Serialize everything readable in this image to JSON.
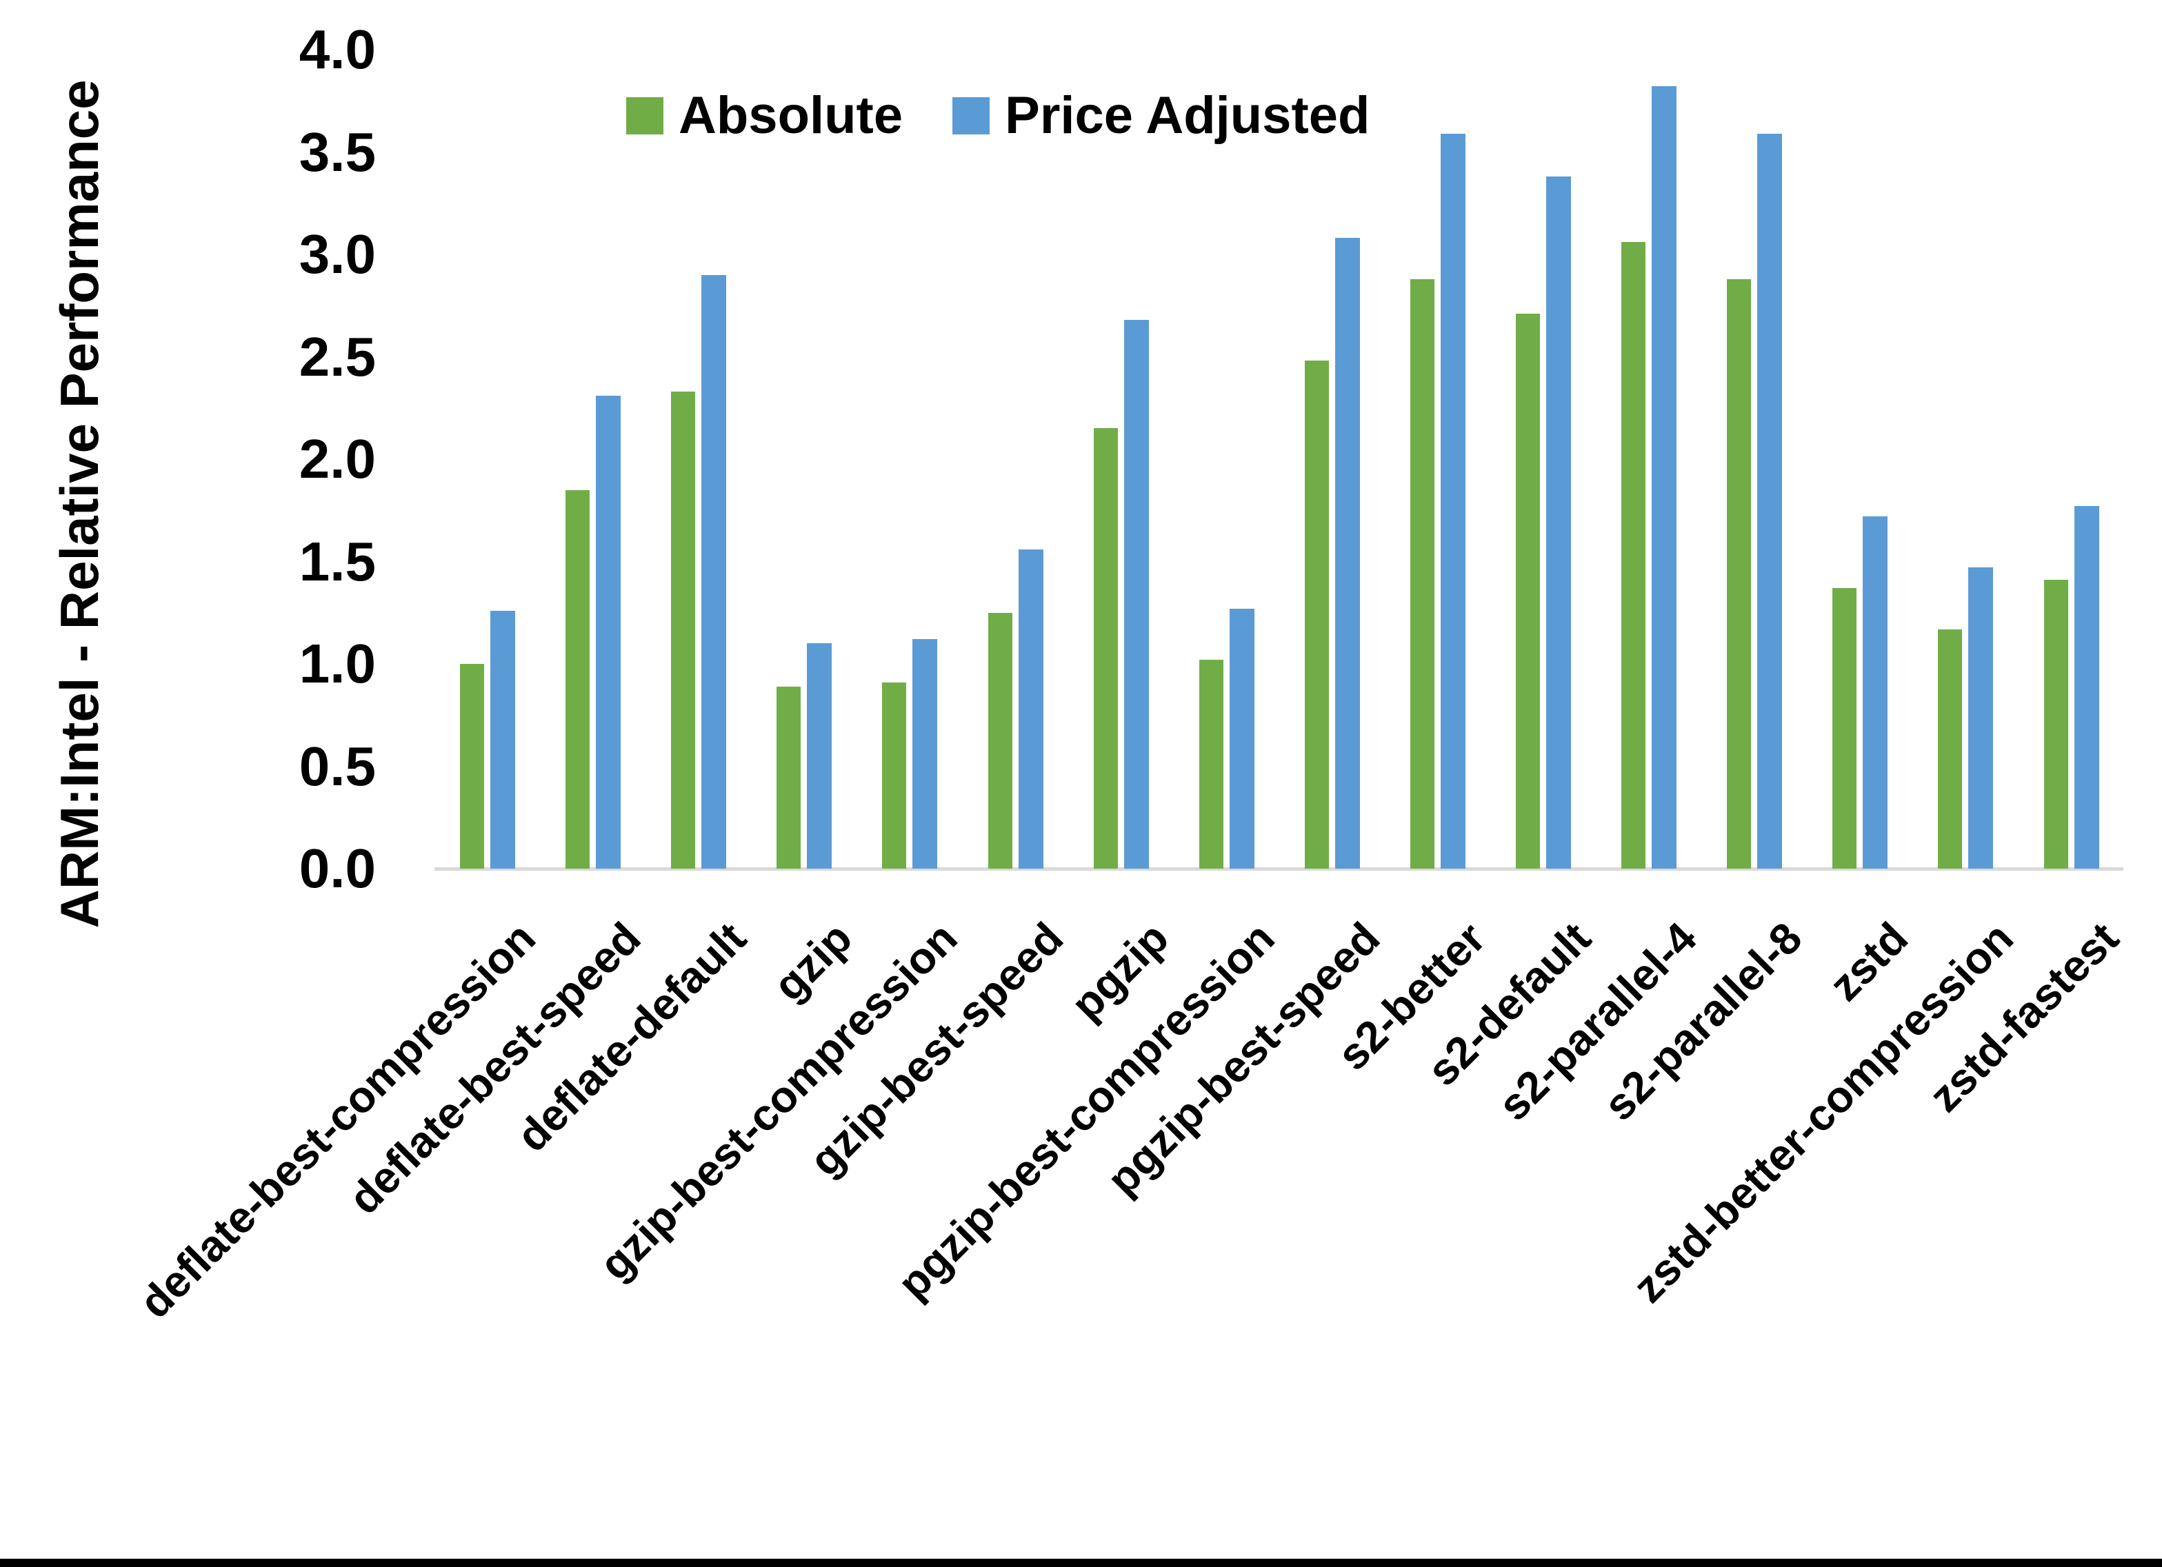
{
  "figure": {
    "background_color": "#FFFFFF",
    "bottom_border_color": "#000000",
    "axis_line_color": "#D9D9D9",
    "text_color": "#000000"
  },
  "legend": {
    "items": [
      {
        "label": "Absolute",
        "color": "#70AD47"
      },
      {
        "label": "Price Adjusted",
        "color": "#5B9BD5"
      }
    ]
  },
  "chart_data": {
    "type": "bar",
    "title": "",
    "xlabel": "",
    "ylabel": "ARM:Intel - Relative Performance",
    "ylim": [
      0,
      4
    ],
    "ytick_step": 0.5,
    "ytick_labels": [
      "0.0",
      "0.5",
      "1.0",
      "1.5",
      "2.0",
      "2.5",
      "3.0",
      "3.5",
      "4.0"
    ],
    "grid": false,
    "legend_position": "top-center-inside",
    "categories": [
      "deflate-best-compression",
      "deflate-best-speed",
      "deflate-default",
      "gzip",
      "gzip-best-compression",
      "gzip-best-speed",
      "pgzip",
      "pgzip-best-compression",
      "pgzip-best-speed",
      "s2-better",
      "s2-default",
      "s2-parallel-4",
      "s2-parallel-8",
      "zstd",
      "zstd-better-compression",
      "zstd-fastest"
    ],
    "series": [
      {
        "name": "Absolute",
        "color": "#70AD47",
        "values": [
          1.0,
          1.85,
          2.33,
          0.89,
          0.91,
          1.25,
          2.15,
          1.02,
          2.48,
          2.88,
          2.71,
          3.06,
          2.88,
          1.37,
          1.17,
          1.41
        ]
      },
      {
        "name": "Price Adjusted",
        "color": "#5B9BD5",
        "values": [
          1.26,
          2.31,
          2.9,
          1.1,
          1.12,
          1.56,
          2.68,
          1.27,
          3.08,
          3.59,
          3.38,
          3.82,
          3.59,
          1.72,
          1.47,
          1.77
        ]
      }
    ]
  }
}
